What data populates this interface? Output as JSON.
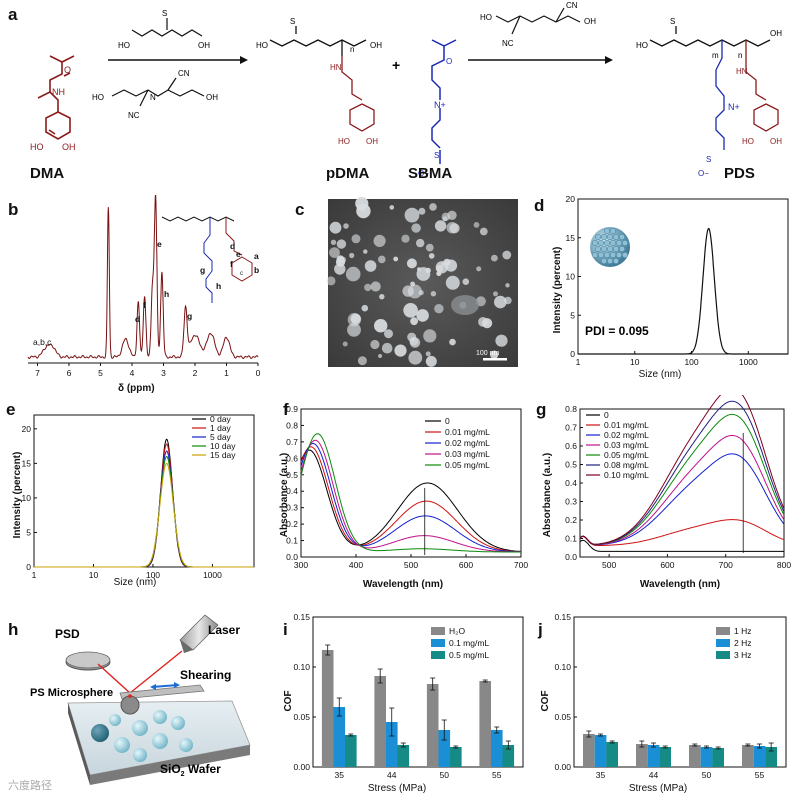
{
  "panel_a": {
    "label": "a",
    "compounds": [
      "DMA",
      "pDMA",
      "SBMA",
      "PDS"
    ],
    "plus": "+",
    "atoms": {
      "HO": "HO",
      "OH": "OH",
      "O": "O",
      "S": "S",
      "N": "N",
      "NH": "NH",
      "HN": "HN",
      "CN": "CN",
      "NC": "NC",
      "Nplus": "N+",
      "Ominus": "O−",
      "n": "n",
      "m": "m"
    }
  },
  "panel_b": {
    "label": "b",
    "peaks": [
      "a,b,c",
      "d",
      "f",
      "e",
      "h",
      "g"
    ],
    "struct_letters": [
      "d",
      "e",
      "f",
      "g",
      "h",
      "a",
      "b",
      "c"
    ],
    "xlabel": "δ (ppm)",
    "xticks": [
      "7",
      "6",
      "5",
      "4",
      "3",
      "2",
      "1",
      "0"
    ]
  },
  "panel_c": {
    "label": "c",
    "scalebar": "100 nm"
  },
  "panel_d": {
    "label": "d",
    "ylabel": "Intensity (percent)",
    "xlabel": "Size (nm)",
    "annotation": "PDI = 0.095",
    "yticks": [
      "0",
      "5",
      "10",
      "15",
      "20"
    ],
    "xticks": [
      "1",
      "10",
      "100",
      "1000"
    ]
  },
  "panel_e": {
    "label": "e",
    "ylabel": "Intensity (percent)",
    "xlabel": "Size (nm)",
    "yticks": [
      "0",
      "5",
      "10",
      "15",
      "20"
    ],
    "xticks": [
      "1",
      "10",
      "100",
      "1000"
    ],
    "legend": [
      "0 day",
      "1 day",
      "5 day",
      "10 day",
      "15 day"
    ],
    "colors": [
      "#000000",
      "#d01010",
      "#1020d0",
      "#0a8a0a",
      "#c8a000"
    ]
  },
  "panel_f": {
    "label": "f",
    "ylabel": "Absorbance (a.u.)",
    "xlabel": "Wavelength (nm)",
    "yticks": [
      "0.0",
      "0.1",
      "0.2",
      "0.3",
      "0.4",
      "0.5",
      "0.6",
      "0.7",
      "0.8",
      "0.9"
    ],
    "xticks": [
      "300",
      "400",
      "500",
      "600",
      "700"
    ],
    "legend": [
      "0",
      "0.01 mg/mL",
      "0.02 mg/mL",
      "0.03 mg/mL",
      "0.05 mg/mL"
    ],
    "colors": [
      "#000000",
      "#d01010",
      "#1020d0",
      "#c0108a",
      "#0a8a0a"
    ]
  },
  "panel_g": {
    "label": "g",
    "ylabel": "Absorbance (a.u.)",
    "xlabel": "Wavelength (nm)",
    "yticks": [
      "0.0",
      "0.1",
      "0.2",
      "0.3",
      "0.4",
      "0.5",
      "0.6",
      "0.7",
      "0.8"
    ],
    "xticks": [
      "500",
      "600",
      "700",
      "800"
    ],
    "legend": [
      "0",
      "0.01 mg/mL",
      "0.02 mg/mL",
      "0.03 mg/mL",
      "0.05 mg/mL",
      "0.08 mg/mL",
      "0.10 mg/mL"
    ],
    "colors": [
      "#000000",
      "#d01010",
      "#1020d0",
      "#c0108a",
      "#0a8a0a",
      "#202080",
      "#800020"
    ]
  },
  "panel_h": {
    "label": "h",
    "labels": {
      "psd": "PSD",
      "laser": "Laser",
      "shearing": "Shearing",
      "microsphere": "PS Microsphere",
      "wafer": "SiO",
      "wafer_sub": "2",
      "wafer_tail": " Wafer"
    }
  },
  "chart_data": [
    {
      "type": "bar",
      "panel": "i",
      "label": "i",
      "categories": [
        "35",
        "44",
        "50",
        "55"
      ],
      "series": [
        {
          "name": "H₂O",
          "color": "#888888",
          "values": [
            0.117,
            0.091,
            0.083,
            0.086
          ],
          "errors": [
            0.005,
            0.007,
            0.006,
            0.001
          ]
        },
        {
          "name": "0.1 mg/mL",
          "color": "#1a8fd6",
          "values": [
            0.06,
            0.045,
            0.037,
            0.037
          ],
          "errors": [
            0.009,
            0.014,
            0.01,
            0.003
          ]
        },
        {
          "name": "0.5 mg/mL",
          "color": "#168a84",
          "values": [
            0.032,
            0.022,
            0.02,
            0.022
          ],
          "errors": [
            0.001,
            0.002,
            0.001,
            0.004
          ]
        }
      ],
      "legend": [
        "H₂O",
        "0.1 mg/mL",
        "0.5 mg/mL"
      ],
      "xlabel": "Stress (MPa)",
      "ylabel": "COF",
      "ylim": [
        0,
        0.15
      ],
      "yticks": [
        "0.00",
        "0.05",
        "0.10",
        "0.15"
      ]
    },
    {
      "type": "bar",
      "panel": "j",
      "label": "j",
      "categories": [
        "35",
        "44",
        "50",
        "55"
      ],
      "series": [
        {
          "name": "1 Hz",
          "color": "#888888",
          "values": [
            0.033,
            0.023,
            0.022,
            0.022
          ],
          "errors": [
            0.003,
            0.003,
            0.001,
            0.001
          ]
        },
        {
          "name": "2 Hz",
          "color": "#1a8fd6",
          "values": [
            0.032,
            0.022,
            0.02,
            0.021
          ],
          "errors": [
            0.001,
            0.002,
            0.001,
            0.002
          ]
        },
        {
          "name": "3 Hz",
          "color": "#168a84",
          "values": [
            0.025,
            0.02,
            0.019,
            0.02
          ],
          "errors": [
            0.001,
            0.001,
            0.001,
            0.004
          ]
        }
      ],
      "legend": [
        "1 Hz",
        "2 Hz",
        "3 Hz"
      ],
      "xlabel": "Stress (MPa)",
      "ylabel": "COF",
      "ylim": [
        0,
        0.15
      ],
      "yticks": [
        "0.00",
        "0.05",
        "0.10",
        "0.15"
      ]
    }
  ],
  "watermark": "六度路径"
}
